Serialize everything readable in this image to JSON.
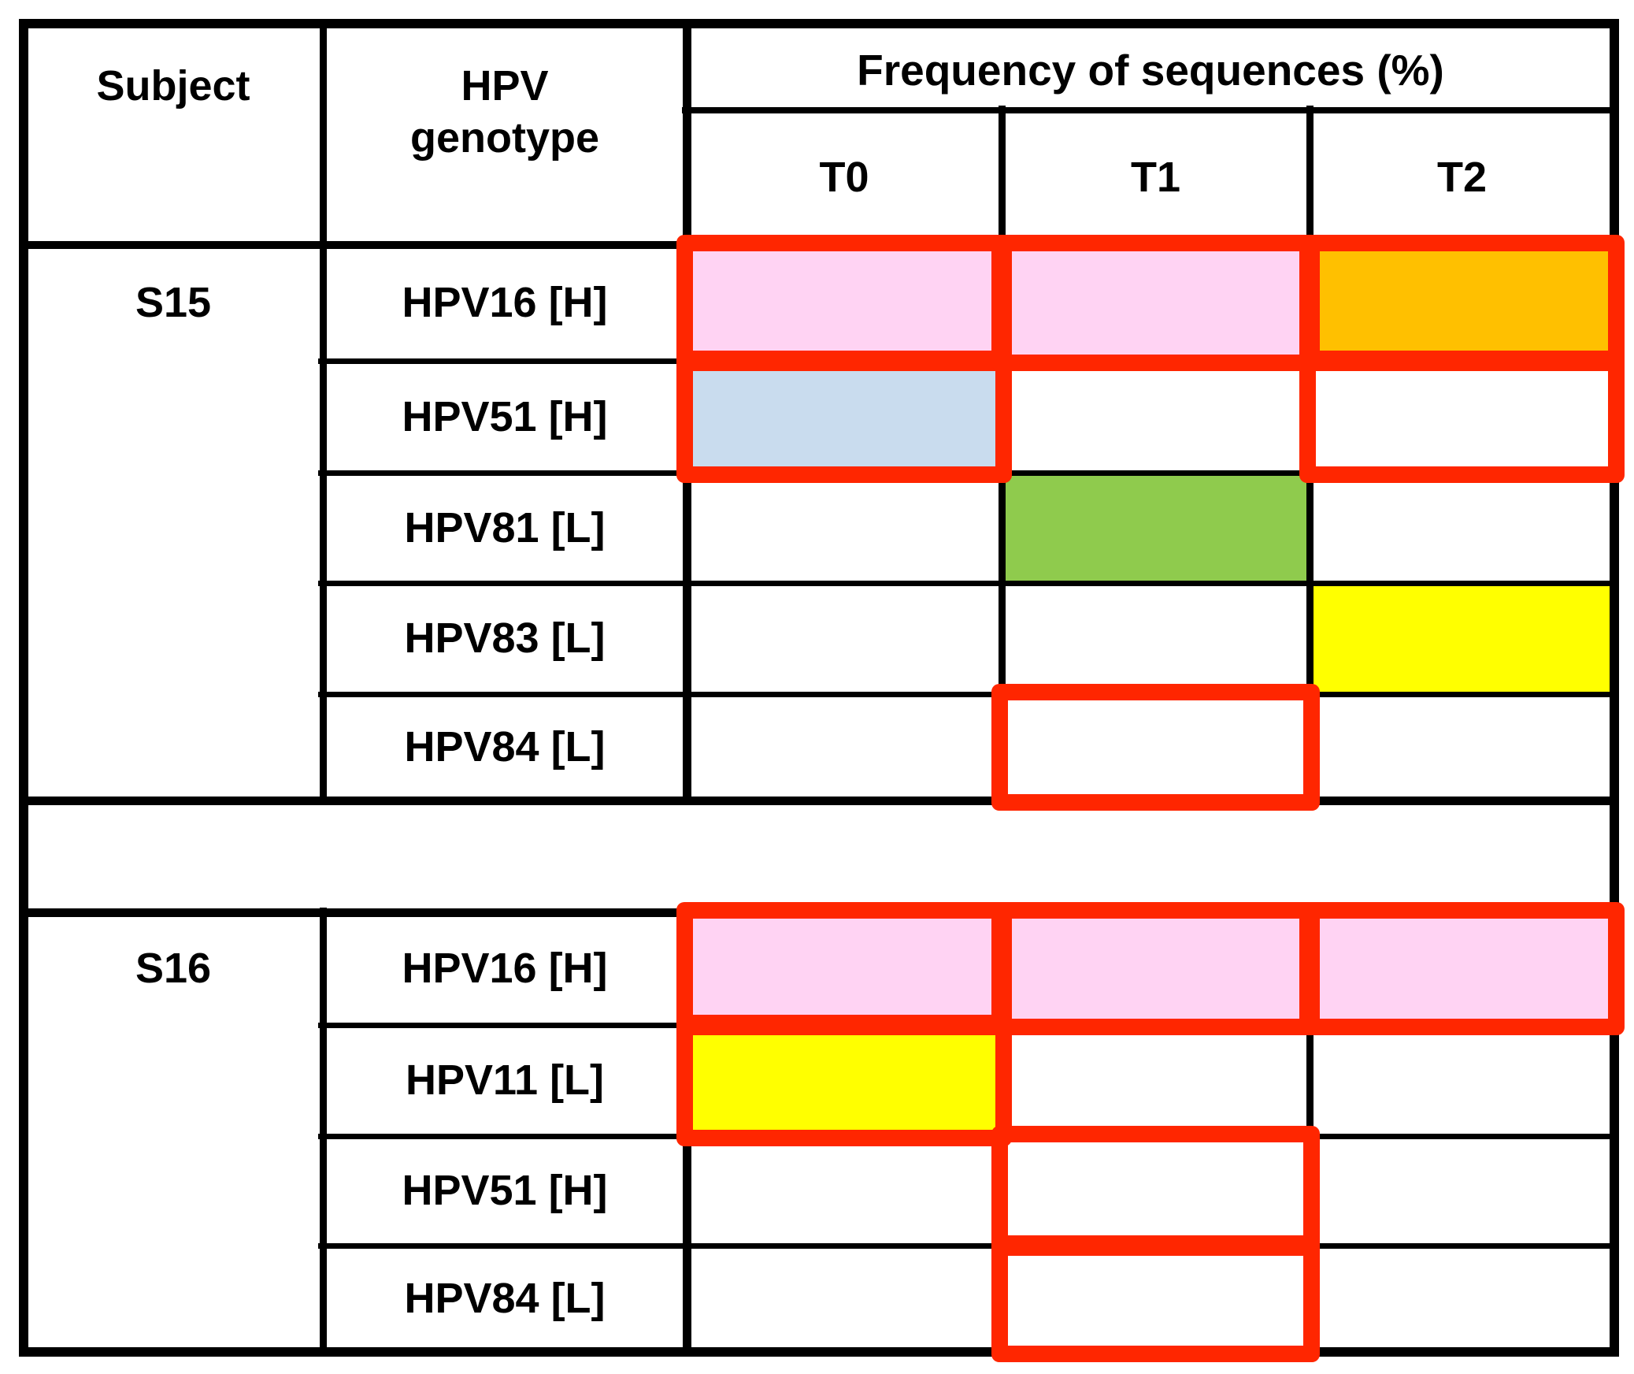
{
  "header": {
    "subject": "Subject",
    "genotype_line1": "HPV",
    "genotype_line2": "genotype",
    "frequency": "Frequency of sequences (%)",
    "timepoints": [
      "T0",
      "T1",
      "T2"
    ]
  },
  "colors": {
    "pink": "#FFD3F3",
    "blue": "#C9DCEE",
    "green": "#8FCB4D",
    "yellow": "#FFFF00",
    "orange": "#FFC000",
    "white": "#FFFFFF",
    "outline_red": "#FF2600",
    "grid": "#000000",
    "background": "#FFFFFF"
  },
  "chart_data": {
    "type": "table",
    "title": "Frequency of sequences (%)",
    "columns": [
      "Subject",
      "HPV genotype",
      "T0",
      "T1",
      "T2"
    ],
    "column_group": {
      "label": "Frequency of sequences (%)",
      "spans": [
        "T0",
        "T1",
        "T2"
      ]
    },
    "legend_position": "none",
    "rows": [
      {
        "subject": "S15",
        "genotype": "HPV16 [H]",
        "T0": {
          "fill": "pink",
          "red_outline": true
        },
        "T1": {
          "fill": "pink",
          "red_outline": true
        },
        "T2": {
          "fill": "orange",
          "red_outline": true
        }
      },
      {
        "subject": "S15",
        "genotype": "HPV51 [H]",
        "T0": {
          "fill": "blue",
          "red_outline": true
        },
        "T1": {
          "fill": "white",
          "red_outline": false
        },
        "T2": {
          "fill": "white",
          "red_outline": true
        }
      },
      {
        "subject": "S15",
        "genotype": "HPV81 [L]",
        "T0": {
          "fill": "white",
          "red_outline": false
        },
        "T1": {
          "fill": "green",
          "red_outline": false
        },
        "T2": {
          "fill": "white",
          "red_outline": false
        }
      },
      {
        "subject": "S15",
        "genotype": "HPV83 [L]",
        "T0": {
          "fill": "white",
          "red_outline": false
        },
        "T1": {
          "fill": "white",
          "red_outline": false
        },
        "T2": {
          "fill": "yellow",
          "red_outline": false
        }
      },
      {
        "subject": "S15",
        "genotype": "HPV84 [L]",
        "T0": {
          "fill": "white",
          "red_outline": false
        },
        "T1": {
          "fill": "white",
          "red_outline": true
        },
        "T2": {
          "fill": "white",
          "red_outline": false
        }
      },
      {
        "subject": "S16",
        "genotype": "HPV16 [H]",
        "T0": {
          "fill": "pink",
          "red_outline": true
        },
        "T1": {
          "fill": "pink",
          "red_outline": true
        },
        "T2": {
          "fill": "pink",
          "red_outline": true
        }
      },
      {
        "subject": "S16",
        "genotype": "HPV11 [L]",
        "T0": {
          "fill": "yellow",
          "red_outline": true
        },
        "T1": {
          "fill": "white",
          "red_outline": false
        },
        "T2": {
          "fill": "white",
          "red_outline": false
        }
      },
      {
        "subject": "S16",
        "genotype": "HPV51 [H]",
        "T0": {
          "fill": "white",
          "red_outline": false
        },
        "T1": {
          "fill": "white",
          "red_outline": true
        },
        "T2": {
          "fill": "white",
          "red_outline": false
        }
      },
      {
        "subject": "S16",
        "genotype": "HPV84 [L]",
        "T0": {
          "fill": "white",
          "red_outline": false
        },
        "T1": {
          "fill": "white",
          "red_outline": true
        },
        "T2": {
          "fill": "white",
          "red_outline": false
        }
      }
    ]
  }
}
